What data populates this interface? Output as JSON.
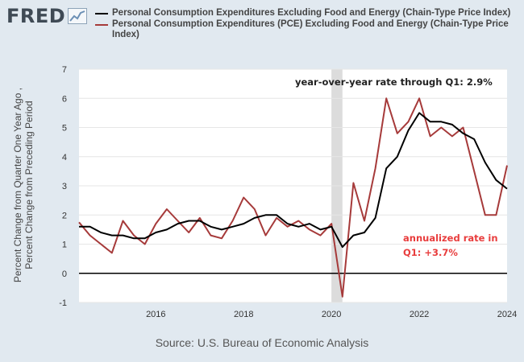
{
  "header": {
    "logo_text": "FRED",
    "logo_icon": "trend-line-icon"
  },
  "legend": [
    {
      "label": "Personal Consumption Expenditures Excluding Food and Energy (Chain-Type Price Index)",
      "color": "#000000"
    },
    {
      "label": "Personal Consumption Expenditures (PCE) Excluding Food and Energy (Chain-Type Price Index)",
      "color": "#a63a3a"
    }
  ],
  "source": "Source: U.S. Bureau of Economic Analysis",
  "chart_data": {
    "type": "line",
    "ylabel": "Percent Change from Quarter One Year Ago , Percent Change from Preceding Period",
    "xlim": [
      2014.25,
      2024.0
    ],
    "ylim": [
      -1,
      7
    ],
    "yticks": [
      "-1",
      "0",
      "1",
      "2",
      "3",
      "4",
      "5",
      "6",
      "7"
    ],
    "xticks": [
      "2016",
      "2018",
      "2020",
      "2022",
      "2024"
    ],
    "grid": "horizontal",
    "recession_shading": [
      2020.0,
      2020.25
    ],
    "series": [
      {
        "name": "Personal Consumption Expenditures Excluding Food and Energy (Chain-Type Price Index)",
        "color": "#000000",
        "x": [
          2014.25,
          2014.5,
          2014.75,
          2015.0,
          2015.25,
          2015.5,
          2015.75,
          2016.0,
          2016.25,
          2016.5,
          2016.75,
          2017.0,
          2017.25,
          2017.5,
          2017.75,
          2018.0,
          2018.25,
          2018.5,
          2018.75,
          2019.0,
          2019.25,
          2019.5,
          2019.75,
          2020.0,
          2020.25,
          2020.5,
          2020.75,
          2021.0,
          2021.25,
          2021.5,
          2021.75,
          2022.0,
          2022.25,
          2022.5,
          2022.75,
          2023.0,
          2023.25,
          2023.5,
          2023.75,
          2024.0
        ],
        "values": [
          1.6,
          1.6,
          1.4,
          1.3,
          1.3,
          1.2,
          1.2,
          1.4,
          1.5,
          1.7,
          1.8,
          1.8,
          1.6,
          1.5,
          1.6,
          1.7,
          1.9,
          2.0,
          2.0,
          1.7,
          1.6,
          1.7,
          1.5,
          1.6,
          0.9,
          1.3,
          1.4,
          1.9,
          3.6,
          4.0,
          4.9,
          5.5,
          5.2,
          5.2,
          5.1,
          4.8,
          4.6,
          3.8,
          3.2,
          2.9
        ]
      },
      {
        "name": "Personal Consumption Expenditures (PCE) Excluding Food and Energy (Chain-Type Price Index)",
        "color": "#a63a3a",
        "x": [
          2014.25,
          2014.5,
          2014.75,
          2015.0,
          2015.25,
          2015.5,
          2015.75,
          2016.0,
          2016.25,
          2016.5,
          2016.75,
          2017.0,
          2017.25,
          2017.5,
          2017.75,
          2018.0,
          2018.25,
          2018.5,
          2018.75,
          2019.0,
          2019.25,
          2019.5,
          2019.75,
          2020.0,
          2020.25,
          2020.5,
          2020.75,
          2021.0,
          2021.25,
          2021.5,
          2021.75,
          2022.0,
          2022.25,
          2022.5,
          2022.75,
          2023.0,
          2023.25,
          2023.5,
          2023.75,
          2024.0
        ],
        "values": [
          1.75,
          1.3,
          1.0,
          0.7,
          1.8,
          1.3,
          1.0,
          1.7,
          2.2,
          1.8,
          1.4,
          1.9,
          1.3,
          1.2,
          1.8,
          2.6,
          2.2,
          1.3,
          1.9,
          1.6,
          1.8,
          1.5,
          1.3,
          1.7,
          -0.8,
          3.1,
          1.8,
          3.6,
          6.0,
          4.8,
          5.2,
          6.0,
          4.7,
          5.0,
          4.7,
          5.0,
          3.5,
          2.0,
          2.0,
          3.7
        ]
      }
    ],
    "annotations": [
      {
        "text": "year-over-year rate through Q1: 2.9%",
        "color": "#222222"
      },
      {
        "text": "annualized rate in",
        "color": "#e83c3c"
      },
      {
        "text": "Q1: +3.7%",
        "color": "#e83c3c"
      }
    ]
  }
}
